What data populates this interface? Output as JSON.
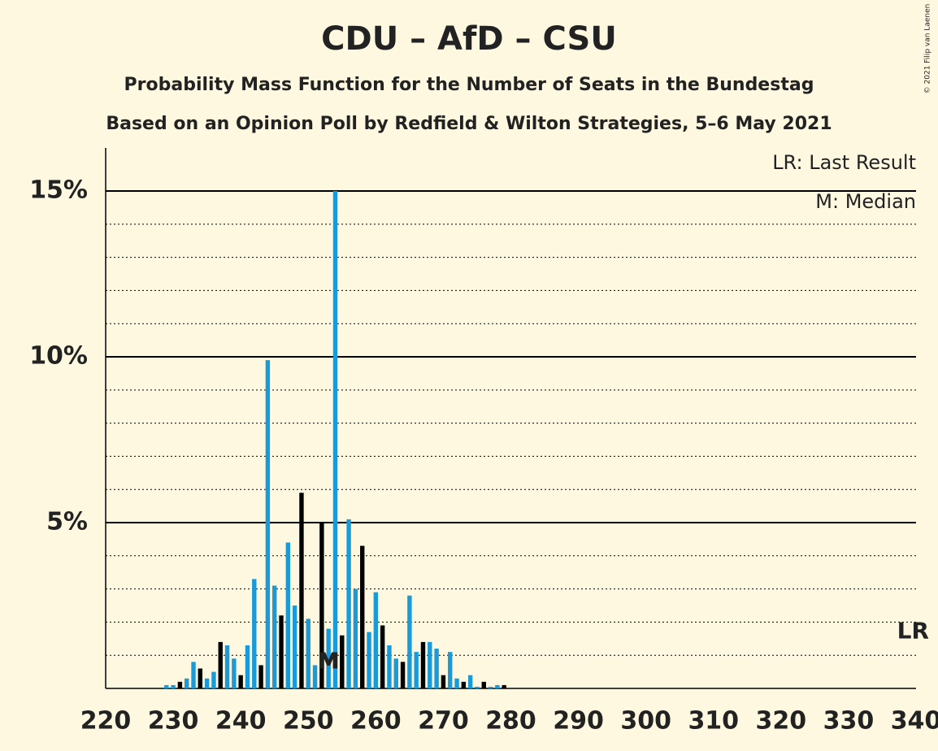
{
  "chart_data": {
    "type": "bar",
    "title": "CDU – AfD – CSU",
    "subtitle": "Probability Mass Function for the Number of Seats in the Bundestag",
    "subtitle2": "Based on an Opinion Poll by Redfield & Wilton Strategies, 5–6 May 2021",
    "copyright": "© 2021 Filip van Laenen",
    "legend": [
      "LR: Last Result",
      "M: Median"
    ],
    "median_label": "M",
    "median": 253,
    "last_result_label": "LR",
    "last_result": 340,
    "x": [
      229,
      230,
      231,
      232,
      233,
      234,
      235,
      236,
      237,
      238,
      239,
      240,
      241,
      242,
      243,
      244,
      245,
      246,
      247,
      248,
      249,
      250,
      251,
      252,
      253,
      254,
      255,
      256,
      257,
      258,
      259,
      260,
      261,
      262,
      263,
      264,
      265,
      266,
      267,
      268,
      269,
      270,
      271,
      272,
      273,
      274,
      275,
      276,
      277,
      278,
      279
    ],
    "values": [
      0.1,
      0.1,
      0.2,
      0.3,
      0.8,
      0.6,
      0.3,
      0.5,
      1.4,
      1.3,
      0.9,
      0.4,
      1.3,
      3.3,
      0.7,
      9.9,
      3.1,
      2.2,
      4.4,
      2.5,
      5.9,
      2.1,
      0.7,
      5.0,
      1.8,
      15.0,
      1.6,
      5.1,
      3.0,
      4.3,
      1.7,
      2.9,
      1.9,
      1.3,
      0.9,
      0.8,
      2.8,
      1.1,
      1.4,
      1.4,
      1.2,
      0.4,
      1.1,
      0.3,
      0.2,
      0.4,
      0.05,
      0.2,
      0.05,
      0.1,
      0.1
    ],
    "colors": [
      "#1a9bd7",
      "#1a9bd7",
      "#000000",
      "#1a9bd7",
      "#1a9bd7",
      "#000000",
      "#1a9bd7",
      "#1a9bd7",
      "#000000",
      "#1a9bd7",
      "#1a9bd7",
      "#000000",
      "#1a9bd7",
      "#1a9bd7",
      "#000000",
      "#1a9bd7",
      "#1a9bd7",
      "#000000",
      "#1a9bd7",
      "#1a9bd7",
      "#000000",
      "#1a9bd7",
      "#1a9bd7",
      "#000000",
      "#1a9bd7",
      "#1a9bd7",
      "#000000",
      "#1a9bd7",
      "#1a9bd7",
      "#000000",
      "#1a9bd7",
      "#1a9bd7",
      "#000000",
      "#1a9bd7",
      "#1a9bd7",
      "#000000",
      "#1a9bd7",
      "#1a9bd7",
      "#000000",
      "#1a9bd7",
      "#1a9bd7",
      "#000000",
      "#1a9bd7",
      "#1a9bd7",
      "#000000",
      "#1a9bd7",
      "#1a9bd7",
      "#000000",
      "#1a9bd7",
      "#1a9bd7",
      "#000000"
    ],
    "xlim": [
      220,
      340
    ],
    "xticks": [
      220,
      230,
      240,
      250,
      260,
      270,
      280,
      290,
      300,
      310,
      320,
      330,
      340
    ],
    "ylim": [
      0,
      16.3
    ],
    "yticks": [
      {
        "value": 5,
        "label": "5%"
      },
      {
        "value": 10,
        "label": "10%"
      },
      {
        "value": 15,
        "label": "15%"
      }
    ],
    "minor_yticks": [
      1,
      2,
      3,
      4,
      6,
      7,
      8,
      9,
      11,
      12,
      13,
      14
    ]
  }
}
